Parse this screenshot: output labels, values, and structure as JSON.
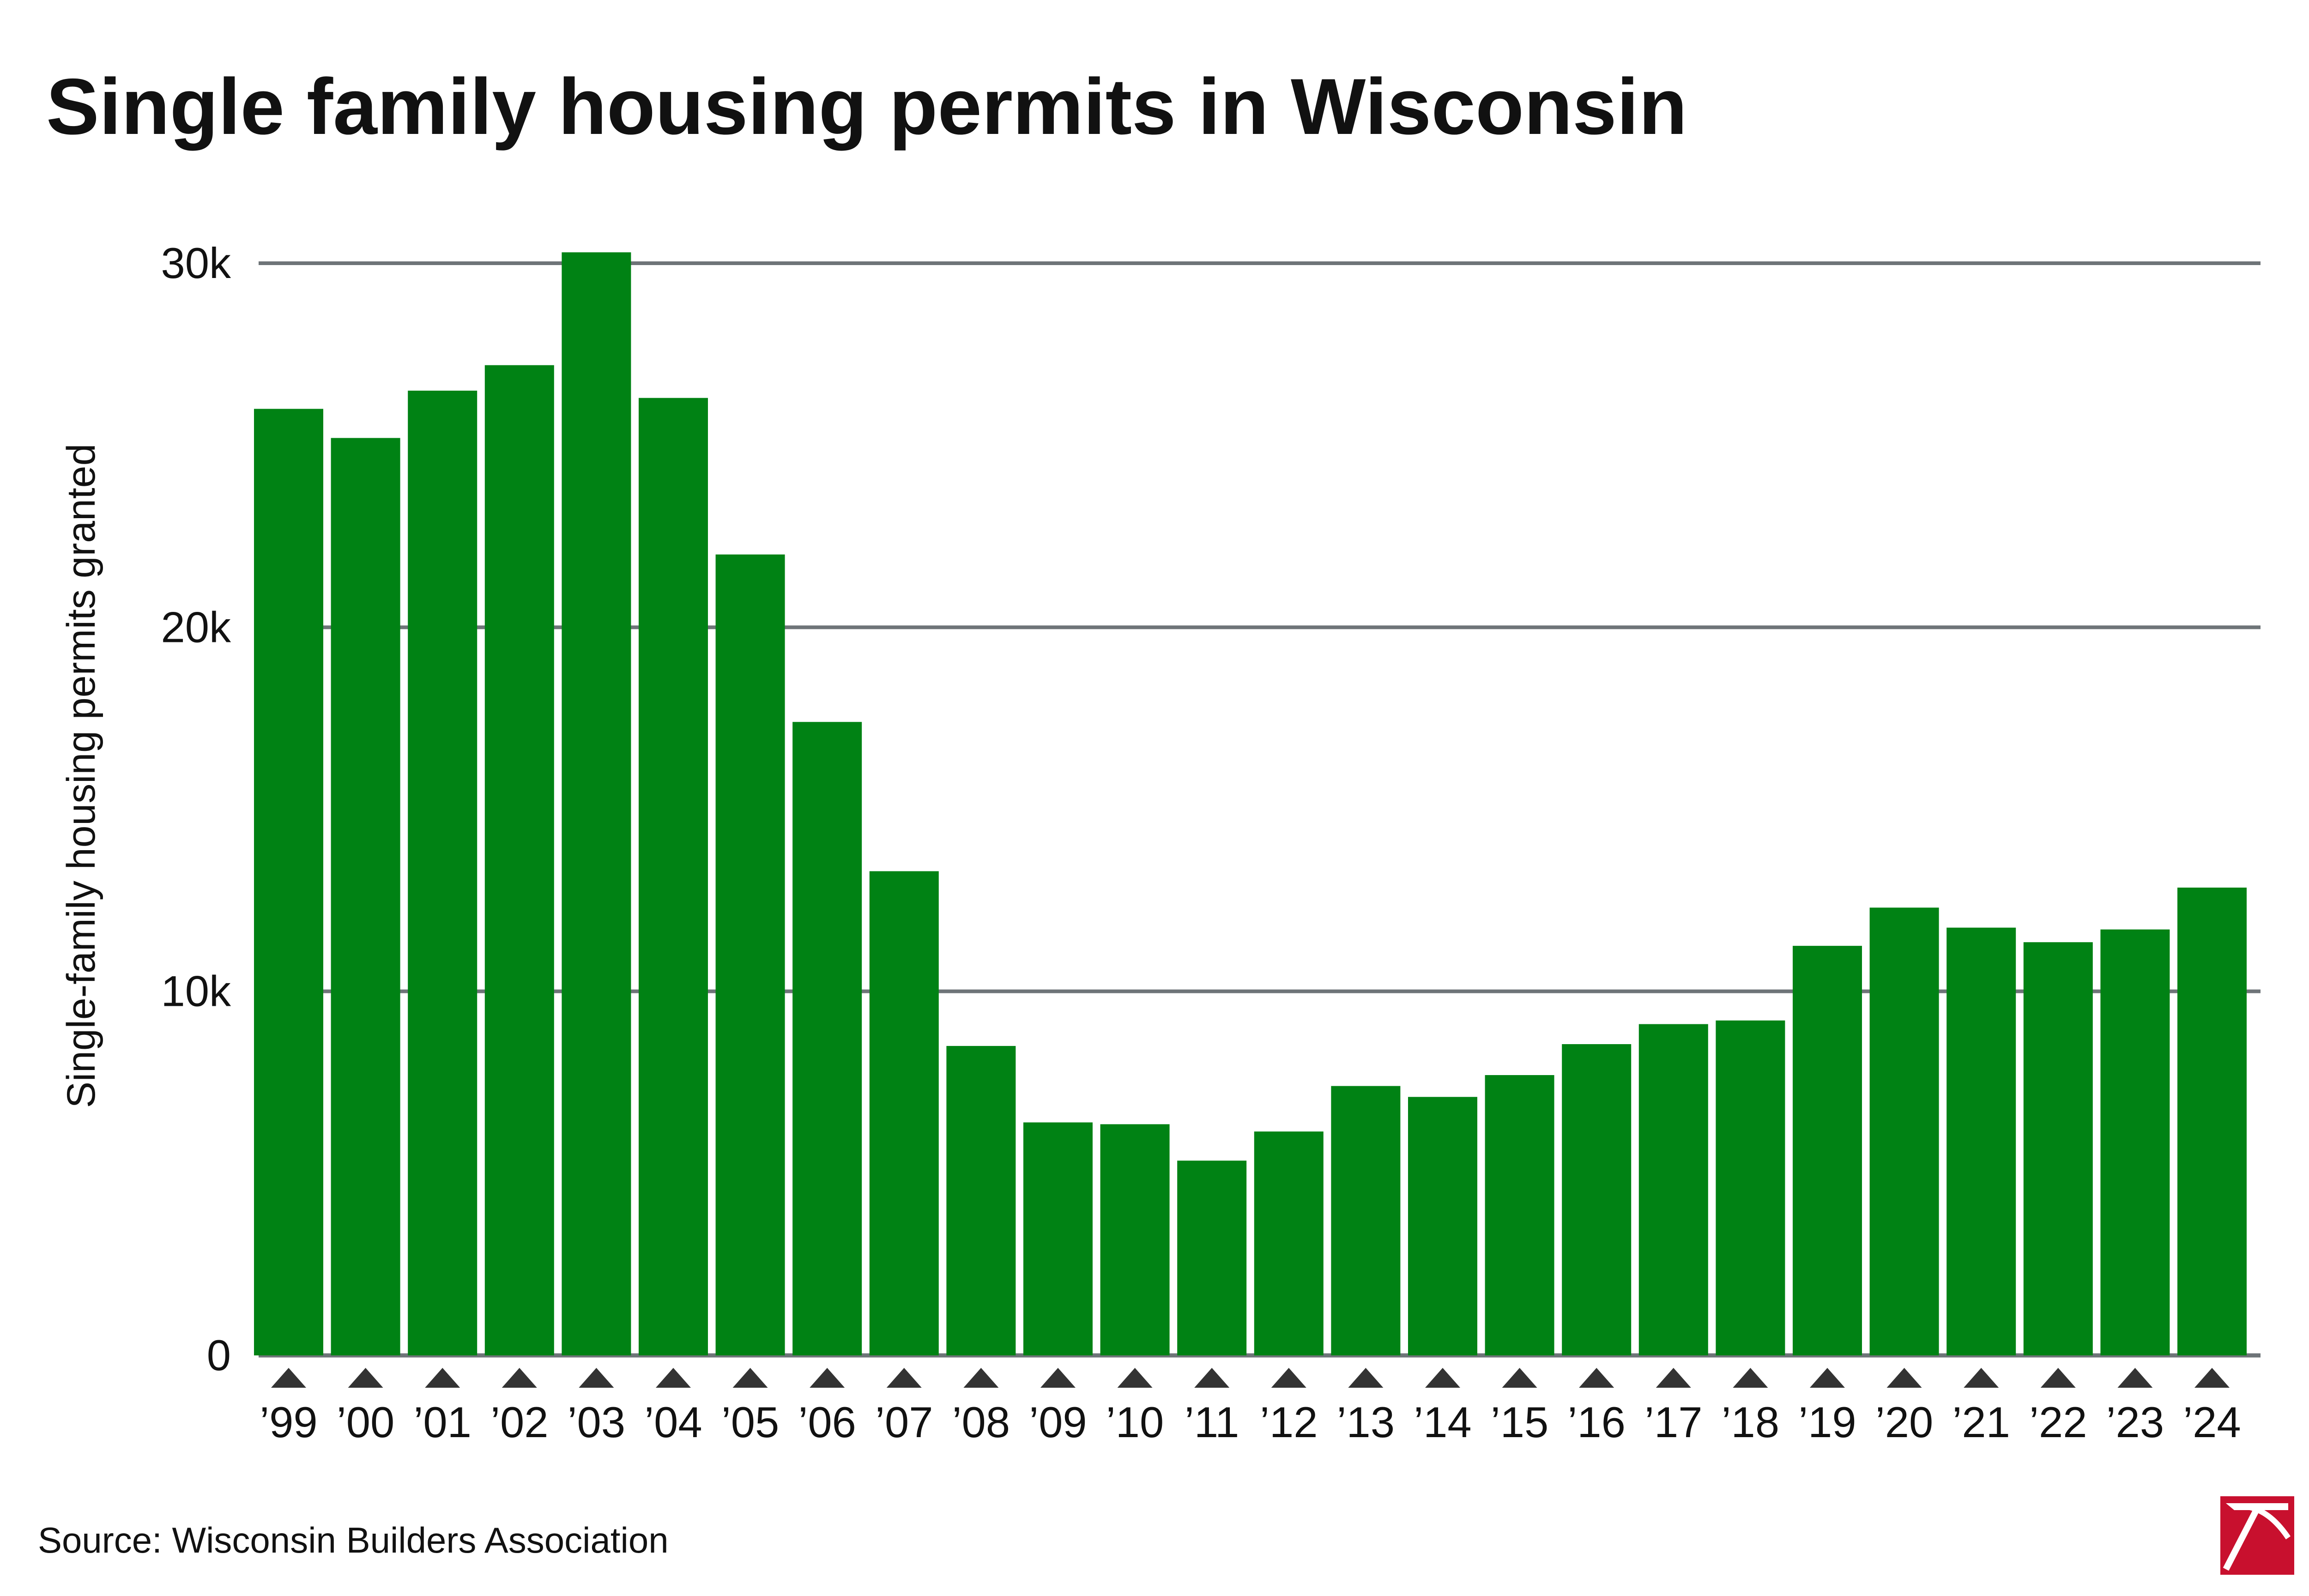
{
  "chart_data": {
    "type": "bar",
    "title": "Single family housing permits in Wisconsin",
    "ylabel": "Single-family housing permits granted",
    "xlabel": "",
    "categories": [
      "’99",
      "’00",
      "’01",
      "’02",
      "’03",
      "’04",
      "’05",
      "’06",
      "’07",
      "’08",
      "’09",
      "’10",
      "’11",
      "’12",
      "’13",
      "’14",
      "’15",
      "’16",
      "’17",
      "’18",
      "’19",
      "’20",
      "’21",
      "’22",
      "’23",
      "’24"
    ],
    "values": [
      26000,
      25200,
      26500,
      27200,
      30300,
      26300,
      22000,
      17400,
      13300,
      8500,
      6400,
      6350,
      5350,
      6150,
      7400,
      7100,
      7700,
      8550,
      9100,
      9200,
      11250,
      12300,
      11750,
      11350,
      11700,
      12850
    ],
    "ylim": [
      0,
      30000
    ],
    "yticks": [
      0,
      10000,
      20000,
      30000
    ],
    "ytick_labels": [
      "0",
      "10k",
      "20k",
      "30k"
    ],
    "grid": true,
    "legend": "none",
    "colors": {
      "bar": "#008214",
      "grid": "#6e7478",
      "tick_marker": "#333333",
      "logo_red": "#c8102e"
    },
    "source": "Source: Wisconsin Builders Association"
  }
}
